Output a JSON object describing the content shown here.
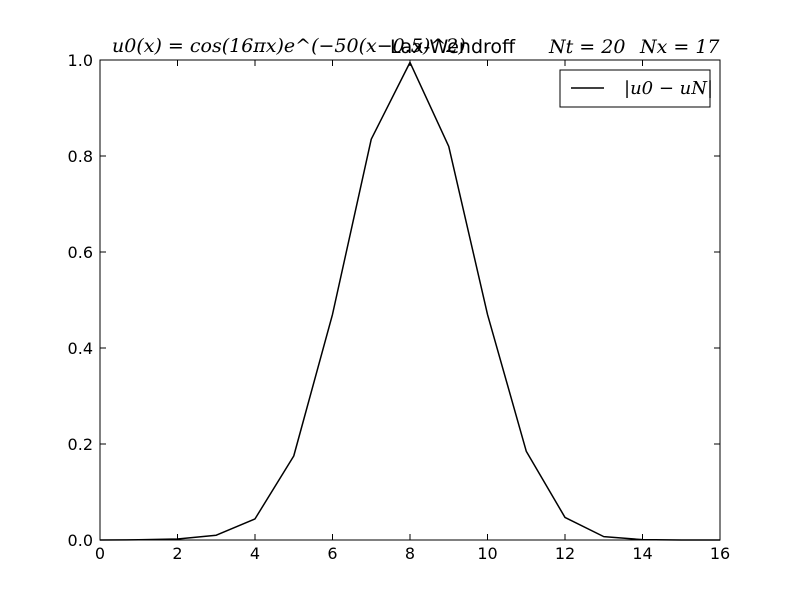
{
  "chart_data": {
    "type": "line",
    "title": "Lax-Wendroff",
    "title_left": "u0(x) = cos(16πx)e^(−50(x−0.5)^2)",
    "title_nt": "Nt = 20",
    "title_nx": "Nx = 17",
    "xlabel": "",
    "ylabel": "",
    "xlim": [
      0,
      16
    ],
    "ylim": [
      0,
      1.0
    ],
    "xticks": [
      "0",
      "2",
      "4",
      "6",
      "8",
      "10",
      "12",
      "14",
      "16"
    ],
    "yticks": [
      "0.0",
      "0.2",
      "0.4",
      "0.6",
      "0.8",
      "1.0"
    ],
    "grid": false,
    "legend_position": "top-right",
    "series": [
      {
        "name": "|u0 − uN|",
        "color": "#000000",
        "x": [
          0,
          1,
          2,
          3,
          4,
          5,
          6,
          7,
          8,
          9,
          10,
          11,
          12,
          13,
          14,
          15,
          16
        ],
        "y": [
          0.0,
          0.0005,
          0.002,
          0.01,
          0.044,
          0.175,
          0.47,
          0.835,
          0.995,
          0.82,
          0.47,
          0.185,
          0.047,
          0.007,
          0.0007,
          0.0,
          0.0
        ]
      }
    ]
  }
}
